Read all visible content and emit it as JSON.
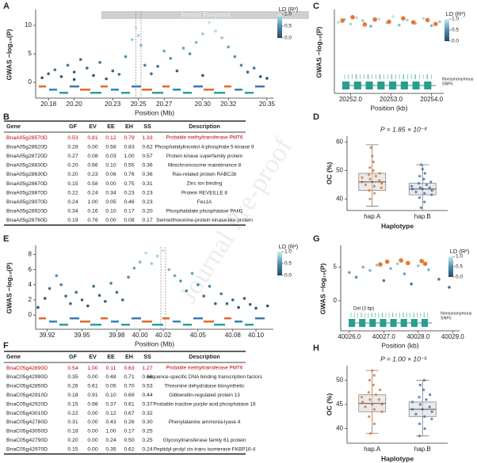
{
  "panel_letters": [
    "A",
    "B",
    "C",
    "D",
    "E",
    "F",
    "G",
    "H"
  ],
  "header_bar": "Journal Pre-proof",
  "watermark": "Journal Pre-proof",
  "A": {
    "type": "scatter",
    "y_label": "GWAS −log₁₀(P)",
    "x_label": "Position (Mb)",
    "xlim": [
      20.17,
      20.355
    ],
    "ylim": [
      0,
      12.5
    ],
    "xticks": [
      20.18,
      {
        "value": 20.2,
        "label": "20.20"
      },
      20.23,
      20.25,
      20.27,
      {
        "value": 20.3,
        "label": "20.30"
      },
      20.32,
      20.35
    ],
    "yticks": [
      0,
      5,
      10
    ],
    "legend_title": "LD (R²)",
    "colorbar_ticks": [
      {
        "value": 1,
        "label": "1.0"
      },
      0.5,
      {
        "value": 0,
        "label": "0.0"
      }
    ],
    "colors": [
      "#2d4863",
      "#4b8fb6",
      "#cdeee6"
    ],
    "highlight_region": [
      20.248,
      20.252
    ],
    "x": [
      20.175,
      20.18,
      20.185,
      20.19,
      20.195,
      20.2,
      20.205,
      20.21,
      20.215,
      20.22,
      20.225,
      20.23,
      20.235,
      20.24,
      20.245,
      20.248,
      20.25,
      20.252,
      20.255,
      20.26,
      20.265,
      20.27,
      20.275,
      20.28,
      20.285,
      20.29,
      20.295,
      20.3,
      20.305,
      20.31,
      20.315,
      20.32,
      20.325,
      20.33,
      20.335,
      20.34,
      20.345,
      20.35,
      20.2,
      20.3
    ],
    "y": [
      0.8,
      1.5,
      2.2,
      1.0,
      3.0,
      1.8,
      4.0,
      2.5,
      1.2,
      3.5,
      0.6,
      2.0,
      1.4,
      4.5,
      7.5,
      9.5,
      8.2,
      6.5,
      3.0,
      1.5,
      2.8,
      5.5,
      4.2,
      2.0,
      6.0,
      5.0,
      7.0,
      8.5,
      10.5,
      9.0,
      7.8,
      6.2,
      4.5,
      3.0,
      1.8,
      2.5,
      1.0,
      0.7,
      0.5,
      1.2
    ],
    "ld": [
      0.1,
      0.2,
      0.3,
      0.1,
      0.3,
      0.2,
      0.3,
      0.2,
      0.1,
      0.3,
      0.1,
      0.2,
      0.3,
      0.5,
      0.8,
      0.9,
      0.85,
      0.7,
      0.4,
      0.3,
      0.3,
      0.6,
      0.5,
      0.2,
      0.6,
      0.5,
      0.7,
      0.8,
      0.95,
      0.9,
      0.8,
      0.6,
      0.5,
      0.4,
      0.2,
      0.3,
      0.1,
      0.1,
      0.05,
      0.1
    ]
  },
  "B": {
    "type": "table",
    "highlight_color": "#c00000",
    "columns": [
      "Gene",
      "GF",
      "EV",
      "EE",
      "EH",
      "SS",
      "Description"
    ],
    "rows": [
      [
        "BnaA05g28570D",
        "0.53",
        "0.81",
        "0.12",
        "0.79",
        "1.33",
        "Probable methyltransferase PMT6"
      ],
      [
        "BnaA05g28620D",
        "0.28",
        "0.00",
        "0.58",
        "0.83",
        "0.62",
        "Phosphatidylinositol 4-phosphate 5-kinase 9"
      ],
      [
        "BnaA05g28720D",
        "0.27",
        "0.08",
        "0.03",
        "1.00",
        "0.57",
        "Protein kinase superfamily protein"
      ],
      [
        "BnaA05g28830D",
        "0.20",
        "0.66",
        "0.10",
        "0.55",
        "0.36",
        "Minichromosome maintenance 8"
      ],
      [
        "BnaA05g28630D",
        "0.20",
        "0.23",
        "0.06",
        "0.76",
        "0.36",
        "Ras-related protein RABC2b"
      ],
      [
        "BnaA05g28670D",
        "0.15",
        "0.58",
        "0.00",
        "0.75",
        "0.31",
        "Zinc ion binding"
      ],
      [
        "BnaA05g28870D",
        "0.22",
        "0.24",
        "0.34",
        "0.23",
        "0.23",
        "Protein REVEILLE 8"
      ],
      [
        "BnaA05g29070D",
        "0.24",
        "1.00",
        "0.05",
        "0.46",
        "0.23",
        "Fes1A"
      ],
      [
        "BnaA05g28920D",
        "0.34",
        "0.16",
        "0.10",
        "0.17",
        "0.20",
        "Phosphatidate phosphatase PAH1"
      ],
      [
        "BnaA05g28760D",
        "0.19",
        "0.76",
        "0.00",
        "0.08",
        "0.17",
        "Serine/threonine-protein kinase-like protein"
      ]
    ]
  },
  "C": {
    "type": "scatter",
    "y_label": "GWAS −log₁₀(P)",
    "x_label": "Position (kb)",
    "xlim": [
      20251.6,
      20254.3
    ],
    "ylim": [
      6,
      12.5
    ],
    "xticks": [
      {
        "value": 20252,
        "label": "20252.0"
      },
      {
        "value": 20253,
        "label": "20253.0"
      },
      {
        "value": 20254,
        "label": "20254.0"
      }
    ],
    "legend_title": "LD (R²)",
    "colorbar_ticks": [
      {
        "value": 1,
        "label": "1.0"
      },
      0.5,
      {
        "value": 0,
        "label": "0.0"
      }
    ],
    "colors": [
      "#2d4863",
      "#4b8fb6",
      "#cdeee6"
    ],
    "snp_label": [
      "Nonsynonymous",
      "SNPs"
    ],
    "x": [
      20251.7,
      20251.85,
      20252.0,
      20252.15,
      20252.3,
      20252.5,
      20252.7,
      20252.9,
      20253.05,
      20253.2,
      20253.4,
      20253.6,
      20253.8,
      20254.0,
      20254.2
    ],
    "y": [
      10.5,
      11,
      10.2,
      11.3,
      10.8,
      9.8,
      11.1,
      10.4,
      11.5,
      10,
      10.9,
      10.3,
      11.2,
      9.9,
      10.6
    ],
    "ld": [
      0.9,
      0.8,
      0.85,
      0.9,
      0.8,
      0.7,
      0.9,
      0.8,
      0.95,
      0.75,
      0.85,
      0.8,
      0.9,
      0.7,
      0.8
    ],
    "lead": {
      "color": "#e8772e",
      "x": [
        20251.8,
        20252.05,
        20252.35,
        20252.6,
        20252.95,
        20253.3,
        20253.55,
        20253.9,
        20254.1
      ],
      "y": [
        10.8,
        11.4,
        10.1,
        11.0,
        10.6,
        11.2,
        10.5,
        10.9,
        10.2
      ]
    }
  },
  "D": {
    "type": "box",
    "p_label": "P = 1.85 × 10⁻⁸",
    "y_label": "OC (%)",
    "x_label": "Haplotype",
    "categories": [
      "hap.A",
      "hap.B"
    ],
    "ylim": [
      36,
      62
    ],
    "yticks": [
      40,
      50,
      60
    ],
    "groups": [
      {
        "color": "#e8772e",
        "min": 37.5,
        "q1": 43,
        "median": 46,
        "q3": 49,
        "max": 59,
        "points": [
          40,
          42,
          43,
          44,
          44.5,
          45,
          45.5,
          46,
          46,
          46.5,
          47,
          47.5,
          48,
          48.5,
          49,
          50,
          51,
          53,
          55,
          58
        ]
      },
      {
        "color": "#3f78b5",
        "min": 36,
        "q1": 41.5,
        "median": 43.5,
        "q3": 45.5,
        "max": 52,
        "points": [
          37,
          39,
          40.5,
          41.5,
          42,
          42.5,
          43,
          43.5,
          43.5,
          44,
          44,
          44.5,
          45,
          45.5,
          46,
          47,
          48,
          49,
          50.5,
          52
        ]
      }
    ]
  },
  "E": {
    "type": "scatter",
    "y_label": "GWAS −log₁₀(P)",
    "x_label": "Position (Mb)",
    "xlim": [
      39.91,
      40.115
    ],
    "ylim": [
      0,
      9
    ],
    "xticks": [
      39.92,
      39.95,
      39.98,
      {
        "value": 40,
        "label": "40.00"
      },
      40.02,
      40.05,
      40.08,
      {
        "value": 40.1,
        "label": "40.10"
      }
    ],
    "yticks": [
      0,
      2,
      4,
      6,
      8
    ],
    "legend_title": "LD (R²)",
    "colorbar_ticks": [
      {
        "value": 1,
        "label": "1.0"
      },
      0.5,
      {
        "value": 0,
        "label": "0.0"
      }
    ],
    "colors": [
      "#2d4863",
      "#4b8fb6",
      "#cdeee6"
    ],
    "highlight_region": [
      40.018,
      40.022
    ],
    "x": [
      39.912,
      39.918,
      39.922,
      39.928,
      39.932,
      39.936,
      39.94,
      39.945,
      39.95,
      39.955,
      39.96,
      39.965,
      39.97,
      39.975,
      39.98,
      39.985,
      39.99,
      39.995,
      40.0,
      40.005,
      40.01,
      40.015,
      40.02,
      40.025,
      40.03,
      40.035,
      40.04,
      40.045,
      40.05,
      40.055,
      40.06,
      40.065,
      40.07,
      40.075,
      40.08,
      40.085,
      40.09,
      40.095,
      40.1,
      40.11
    ],
    "y": [
      1.0,
      2.2,
      3.5,
      5.2,
      4.0,
      2.5,
      1.5,
      3.0,
      2.0,
      1.2,
      3.8,
      2.6,
      1.8,
      4.2,
      3.0,
      2.0,
      5.0,
      6.2,
      7.0,
      8.2,
      6.8,
      7.8,
      8.5,
      6.0,
      5.2,
      4.5,
      3.2,
      5.5,
      4.0,
      2.5,
      3.8,
      1.5,
      2.8,
      1.5,
      2.0,
      1.0,
      2.2,
      1.4,
      0.9,
      1.2
    ],
    "ld": [
      0.1,
      0.2,
      0.3,
      0.5,
      0.4,
      0.3,
      0.2,
      0.3,
      0.2,
      0.1,
      0.3,
      0.2,
      0.2,
      0.4,
      0.3,
      0.2,
      0.5,
      0.6,
      0.7,
      0.9,
      0.8,
      0.85,
      0.95,
      0.7,
      0.6,
      0.5,
      0.4,
      0.6,
      0.4,
      0.3,
      0.4,
      0.2,
      0.3,
      0.2,
      0.2,
      0.1,
      0.2,
      0.2,
      0.1,
      0.1
    ]
  },
  "F": {
    "type": "table",
    "highlight_color": "#c00000",
    "columns": [
      "Gene",
      "GF",
      "EV",
      "EE",
      "EH",
      "SS",
      "Description"
    ],
    "rows": [
      [
        "BnaC05g42890D",
        "0.54",
        "1.00",
        "0.11",
        "0.63",
        "1.27",
        "Probable methyltransferase PMT6"
      ],
      [
        "BnaC05g42990D",
        "0.35",
        "0.00",
        "0.48",
        "0.71",
        "0.66",
        "sequence-specific DNA binding transcription factors"
      ],
      [
        "BnaC05g42850D",
        "0.26",
        "0.61",
        "0.05",
        "0.70",
        "0.53",
        "Threonine dehydratase biosynthetic"
      ],
      [
        "BnaC05g42910D",
        "0.18",
        "0.91",
        "0.10",
        "0.69",
        "0.44",
        "Gibberellin-regulated protein 13"
      ],
      [
        "BnaC05g42920D",
        "0.15",
        "0.98",
        "0.37",
        "0.61",
        "0.37",
        "Probable inactive purple acid phosphatase 16"
      ],
      [
        "BnaC05g43010D",
        "0.22",
        "0.00",
        "0.12",
        "0.67",
        "0.32"
      ],
      [
        "BnaC05g42780D",
        "0.31",
        "0.00",
        "0.43",
        "0.26",
        "0.30",
        "Phenylalanine ammonia-lyase 4"
      ],
      [
        "BnaC05g43050D",
        "0.18",
        "0.00",
        "1.00",
        "0.17",
        "0.25"
      ],
      [
        "BnaC05g42790D",
        "0.20",
        "0.00",
        "0.24",
        "0.50",
        "0.25",
        "Glycosyltransferase family 61 protein"
      ],
      [
        "BnaC05g42970D",
        "0.15",
        "0.00",
        "0.35",
        "0.62",
        "0.24",
        "Peptidyl-prolyl cis-trans isomerase FKBP16-4"
      ]
    ]
  },
  "G": {
    "type": "scatter",
    "y_label": "GWAS −log₁₀(P)",
    "x_label": "Position (kb)",
    "xlim": [
      40025.75,
      40029.2
    ],
    "ylim": [
      0,
      8
    ],
    "yticks": [
      0,
      5
    ],
    "xticks": [
      {
        "value": 40026,
        "label": "40026.0"
      },
      {
        "value": 40027,
        "label": "40027.0"
      },
      {
        "value": 40028,
        "label": "40028.0"
      },
      {
        "value": 40029,
        "label": "40029.0"
      }
    ],
    "legend_title": "LD (R²)",
    "colorbar_ticks": [
      {
        "value": 1,
        "label": "1.0"
      },
      0.5,
      {
        "value": 0,
        "label": "0.0"
      }
    ],
    "colors": [
      "#2d4863",
      "#4b8fb6",
      "#cdeee6"
    ],
    "snp_label": [
      "Nonsynonymous",
      "SNPs"
    ],
    "deletion_label": "Del (3 bp)",
    "x": [
      40026.0,
      40026.2,
      40026.4,
      40026.6,
      40026.8,
      40027.0,
      40027.2,
      40027.4,
      40027.6,
      40027.8,
      40028.0,
      40028.3,
      40028.6,
      40028.9
    ],
    "y": [
      4.2,
      3.5,
      5.0,
      4.5,
      5.3,
      3.0,
      4.8,
      5.5,
      4.0,
      2.5,
      5.2,
      4.6,
      3.2,
      2.0
    ],
    "ld": [
      0.6,
      0.5,
      0.7,
      0.7,
      0.8,
      0.4,
      0.7,
      0.8,
      0.6,
      0.3,
      0.8,
      0.7,
      0.4,
      0.3
    ],
    "lead": {
      "color": "#e8772e",
      "x": [
        40026.9,
        40027.1,
        40027.5,
        40027.7,
        40028.1,
        40028.2
      ],
      "y": [
        5.4,
        5.8,
        6.0,
        5.6,
        5.9,
        5.5
      ]
    }
  },
  "H": {
    "type": "box",
    "p_label": "P = 1.00 × 10⁻⁶",
    "y_label": "OC (%)",
    "x_label": "Haplotype",
    "categories": [
      "hap.A",
      "hap.B"
    ],
    "ylim": [
      37,
      53
    ],
    "yticks": [
      40,
      45,
      50
    ],
    "groups": [
      {
        "color": "#e8772e",
        "min": 39,
        "q1": 43.5,
        "median": 45.2,
        "q3": 47,
        "max": 52,
        "points": [
          39,
          41,
          42.5,
          43.5,
          44,
          44.5,
          45,
          45,
          45.5,
          46,
          46,
          46.5,
          47,
          47.5,
          48,
          49,
          50,
          51,
          52
        ]
      },
      {
        "color": "#3f78b5",
        "min": 38.5,
        "q1": 42.5,
        "median": 44,
        "q3": 45.5,
        "max": 50,
        "points": [
          38.5,
          40,
          41,
          42,
          42.5,
          43,
          43.5,
          44,
          44,
          44.5,
          45,
          45.5,
          46,
          46.5,
          47,
          48,
          49,
          50
        ]
      }
    ]
  }
}
